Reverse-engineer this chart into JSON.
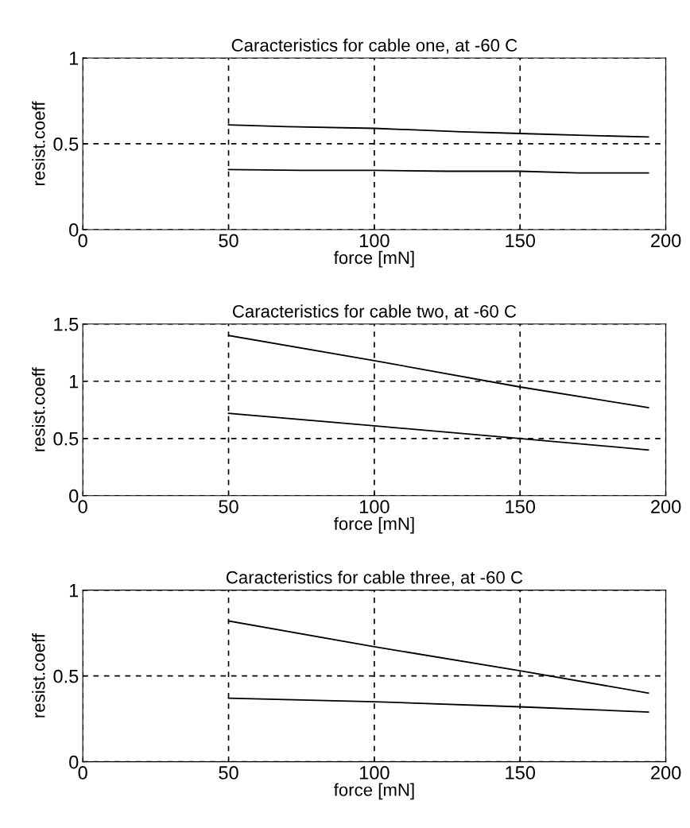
{
  "chart_data": [
    {
      "type": "line",
      "title": "Caracteristics for cable one, at -60 C",
      "xlabel": "force [mN]",
      "ylabel": "resist.coeff",
      "xlim": [
        0,
        200
      ],
      "ylim": [
        0,
        1
      ],
      "xticks": [
        0,
        50,
        100,
        150,
        200
      ],
      "yticks": [
        0,
        0.5,
        1
      ],
      "grid": true,
      "line_style": "solid",
      "series": [
        {
          "color": "#000000",
          "x": [
            50,
            70,
            100,
            130,
            150,
            170,
            194
          ],
          "values": [
            0.61,
            0.6,
            0.59,
            0.57,
            0.56,
            0.55,
            0.54
          ]
        },
        {
          "color": "#000000",
          "x": [
            50,
            75,
            100,
            125,
            150,
            170,
            194
          ],
          "values": [
            0.35,
            0.345,
            0.345,
            0.34,
            0.34,
            0.33,
            0.33
          ]
        }
      ]
    },
    {
      "type": "line",
      "title": "Caracteristics for cable two, at -60 C",
      "xlabel": "force [mN]",
      "ylabel": "resist.coeff",
      "xlim": [
        0,
        200
      ],
      "ylim": [
        0,
        1.5
      ],
      "xticks": [
        0,
        50,
        100,
        150,
        200
      ],
      "yticks": [
        0,
        0.5,
        1,
        1.5
      ],
      "grid": true,
      "line_style": "solid",
      "series": [
        {
          "color": "#000000",
          "x": [
            50,
            100,
            150,
            194
          ],
          "values": [
            1.4,
            1.18,
            0.95,
            0.77
          ]
        },
        {
          "color": "#000000",
          "x": [
            50,
            100,
            150,
            194
          ],
          "values": [
            0.72,
            0.61,
            0.5,
            0.4
          ]
        }
      ]
    },
    {
      "type": "line",
      "title": "Caracteristics for cable three, at -60 C",
      "xlabel": "force [mN]",
      "ylabel": "resist.coeff",
      "xlim": [
        0,
        200
      ],
      "ylim": [
        0,
        1
      ],
      "xticks": [
        0,
        50,
        100,
        150,
        200
      ],
      "yticks": [
        0,
        0.5,
        1
      ],
      "grid": true,
      "line_style": "solid",
      "series": [
        {
          "color": "#000000",
          "x": [
            50,
            100,
            150,
            194
          ],
          "values": [
            0.82,
            0.67,
            0.53,
            0.4
          ]
        },
        {
          "color": "#000000",
          "x": [
            50,
            100,
            150,
            194
          ],
          "values": [
            0.37,
            0.35,
            0.32,
            0.29
          ]
        }
      ]
    }
  ]
}
